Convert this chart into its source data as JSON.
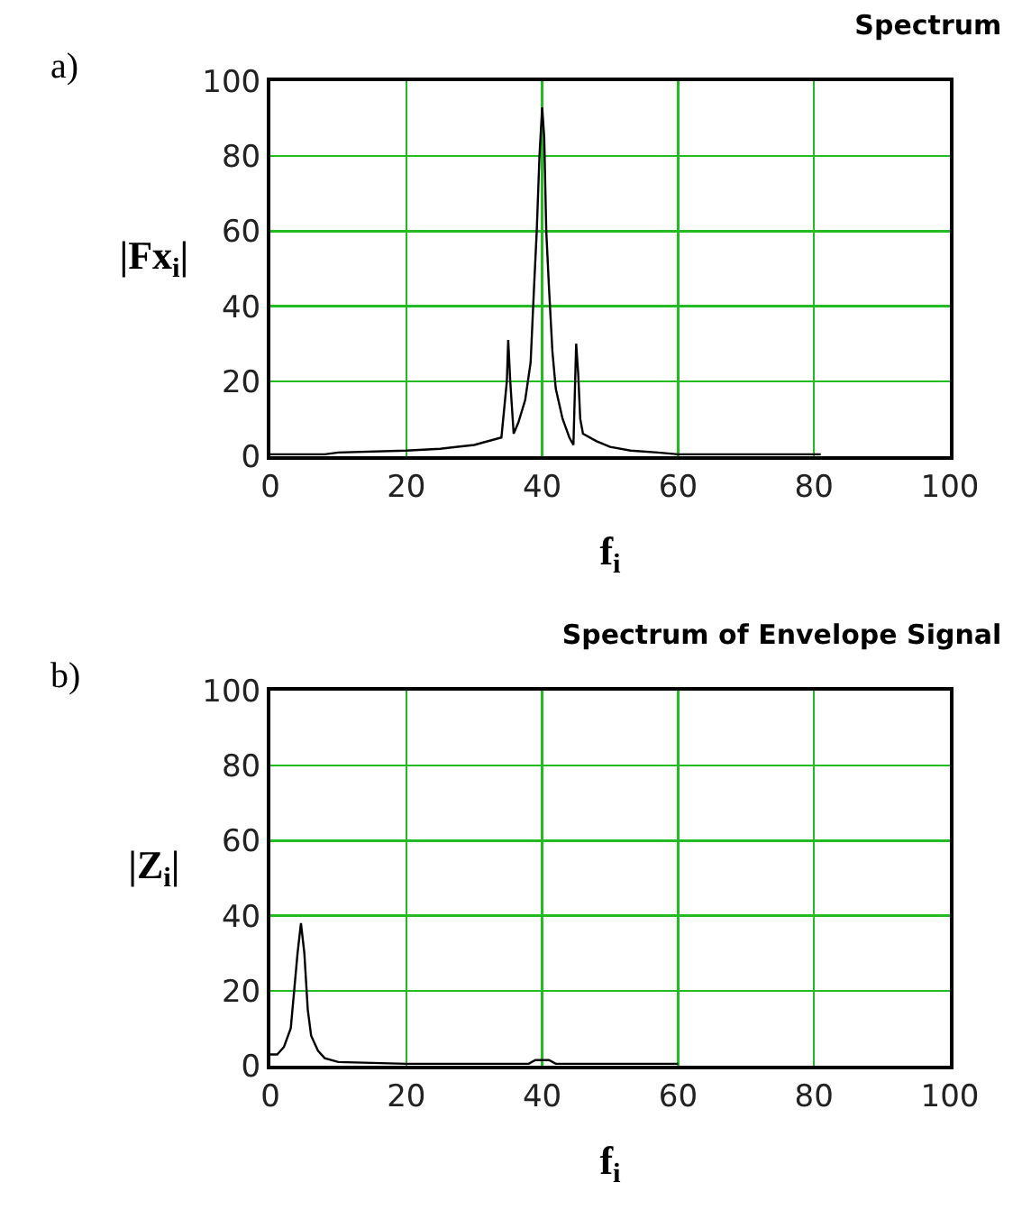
{
  "chart_data": [
    {
      "type": "line",
      "title": "Spectrum",
      "xlabel": "f$_{i}$",
      "ylabel": "|Fx$_{i}$|",
      "annotations": [
        "a)"
      ],
      "color": "#000000",
      "grid": true,
      "xlim": [
        0,
        100
      ],
      "ylim": [
        0,
        100
      ],
      "xticks": [
        0,
        20,
        40,
        60,
        80,
        100
      ],
      "yticks": [
        0,
        20,
        40,
        60,
        80,
        100
      ],
      "x": [
        0,
        8,
        10,
        20,
        25,
        30,
        34,
        34.8,
        35,
        35.3,
        35.8,
        36.5,
        37.5,
        38.3,
        38.8,
        39.2,
        39.6,
        40,
        40.3,
        40.6,
        41,
        41.5,
        42,
        43,
        44,
        44.6,
        45,
        45.3,
        45.6,
        46,
        48,
        50,
        53,
        57,
        60,
        70,
        81
      ],
      "values": [
        0.5,
        0.5,
        1,
        1.5,
        2,
        3,
        5,
        20,
        31,
        20,
        6,
        9,
        15,
        25,
        45,
        60,
        80,
        93,
        85,
        60,
        45,
        28,
        18,
        10,
        5,
        3,
        30,
        22,
        10,
        6,
        4,
        2.5,
        1.5,
        1,
        0.5,
        0.5,
        0.5
      ]
    },
    {
      "type": "line",
      "title": "Spectrum of Envelope Signal",
      "xlabel": "f$_{i}$",
      "ylabel": "|Z$_{i}$|",
      "annotations": [
        "b)"
      ],
      "color": "#000000",
      "grid": true,
      "xlim": [
        0,
        100
      ],
      "ylim": [
        0,
        100
      ],
      "xticks": [
        0,
        20,
        40,
        60,
        80,
        100
      ],
      "yticks": [
        0,
        20,
        40,
        60,
        80,
        100
      ],
      "x": [
        0,
        1,
        2,
        3,
        3.5,
        4,
        4.5,
        5,
        5.5,
        6,
        7,
        8,
        10,
        20,
        30,
        38,
        39,
        40,
        41,
        42,
        50,
        60
      ],
      "values": [
        3,
        3,
        5,
        10,
        20,
        30,
        38,
        30,
        15,
        8,
        4,
        2,
        1,
        0.5,
        0.5,
        0.5,
        1.5,
        1.5,
        1.5,
        0.5,
        0.5,
        0.5
      ]
    }
  ]
}
